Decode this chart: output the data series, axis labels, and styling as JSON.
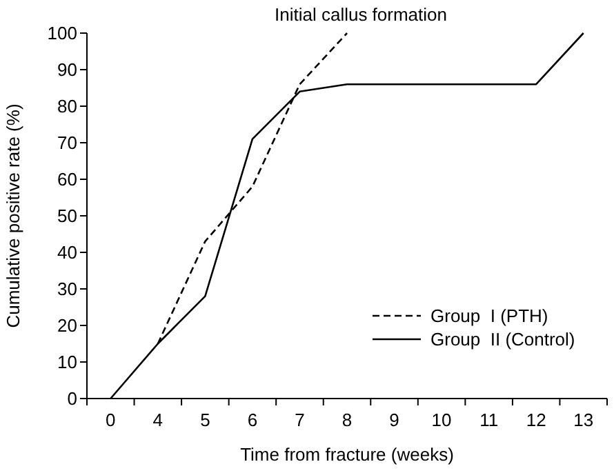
{
  "chart_data": {
    "type": "line",
    "title": "Initial callus formation",
    "xlabel": "Time from fracture (weeks)",
    "ylabel": "Cumulative positive rate (%)",
    "categories": [
      "0",
      "4",
      "5",
      "6",
      "7",
      "8",
      "9",
      "10",
      "11",
      "12",
      "13"
    ],
    "series": [
      {
        "name": "Group  I (PTH)",
        "color": "#000000",
        "line_style": "dashed",
        "values": [
          null,
          15,
          43,
          58,
          86,
          100,
          null,
          null,
          null,
          null,
          null
        ]
      },
      {
        "name": "Group  II (Control)",
        "color": "#000000",
        "line_style": "solid",
        "values": [
          0,
          15,
          28,
          71,
          84,
          86,
          86,
          86,
          86,
          86,
          100
        ]
      }
    ],
    "ylim": [
      0,
      100
    ],
    "yticks": [
      0,
      10,
      20,
      30,
      40,
      50,
      60,
      70,
      80,
      90,
      100
    ],
    "grid": false,
    "legend": "bottom right",
    "marker": "none"
  }
}
